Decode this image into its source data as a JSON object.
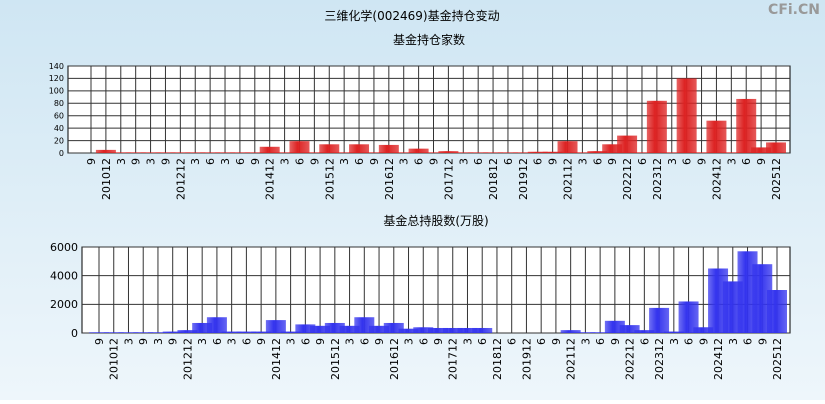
{
  "title": "三维化学(002469)基金持仓变动",
  "watermark": "CFi.CN",
  "chart_data": [
    {
      "type": "bar",
      "title": "基金持仓家数",
      "categories": [
        "9",
        "201012",
        "3",
        "9",
        "3",
        "9",
        "201212",
        "3",
        "6",
        "3",
        "6",
        "9",
        "201412",
        "3",
        "6",
        "9",
        "201512",
        "3",
        "6",
        "9",
        "201612",
        "3",
        "6",
        "9",
        "201712",
        "3",
        "6",
        "201812",
        "6",
        "201912",
        "6",
        "9",
        "202112",
        "3",
        "6",
        "9",
        "202212",
        "6",
        "202312",
        "3",
        "6",
        "9",
        "202412",
        "3",
        "6",
        "9",
        "202512"
      ],
      "series": [
        {
          "name": "基金持仓家数",
          "color": "#dd2222",
          "values": [
            0,
            5,
            1,
            1,
            1,
            1,
            1,
            1,
            1,
            1,
            1,
            1,
            10,
            1,
            19,
            1,
            14,
            1,
            14,
            1,
            13,
            1,
            7,
            1,
            3,
            1,
            1,
            1,
            1,
            1,
            2,
            2,
            19,
            1,
            3,
            14,
            28,
            1,
            84,
            1,
            120,
            1,
            52,
            1,
            87,
            9,
            17
          ]
        }
      ],
      "ylim": [
        0,
        140
      ],
      "yticks": [
        0,
        20,
        40,
        60,
        80,
        100,
        120,
        140
      ],
      "grid": true
    },
    {
      "type": "bar",
      "title": "基金总持股数(万股)",
      "categories": [
        "9",
        "201012",
        "3",
        "9",
        "3",
        "9",
        "201212",
        "3",
        "6",
        "3",
        "6",
        "9",
        "201412",
        "3",
        "6",
        "9",
        "201512",
        "3",
        "6",
        "9",
        "201612",
        "3",
        "6",
        "9",
        "201712",
        "3",
        "6",
        "201812",
        "6",
        "201912",
        "6",
        "9",
        "202112",
        "3",
        "6",
        "9",
        "202212",
        "6",
        "202312",
        "3",
        "6",
        "9",
        "202412",
        "3",
        "6",
        "9",
        "202512"
      ],
      "series": [
        {
          "name": "基金总持股数",
          "color": "#3333ee",
          "values": [
            50,
            50,
            50,
            50,
            50,
            100,
            200,
            700,
            1100,
            100,
            100,
            100,
            900,
            100,
            600,
            500,
            700,
            500,
            1100,
            500,
            700,
            300,
            400,
            350,
            350,
            350,
            350,
            0,
            0,
            0,
            0,
            0,
            200,
            50,
            50,
            850,
            550,
            200,
            1750,
            100,
            2200,
            400,
            4500,
            3600,
            5700,
            4800,
            3000
          ]
        }
      ],
      "ylim": [
        0,
        6000
      ],
      "yticks": [
        0,
        2000,
        4000,
        6000
      ],
      "grid": true
    }
  ]
}
